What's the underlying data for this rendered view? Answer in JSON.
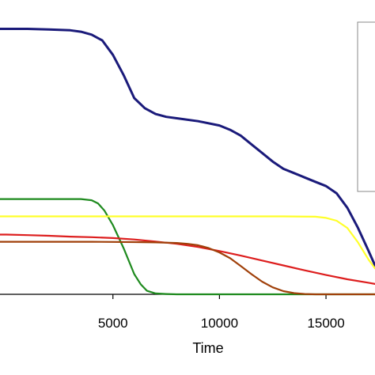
{
  "chart_data": {
    "type": "line",
    "xlabel": "Time",
    "ylabel": "",
    "title": "",
    "xlim": [
      -300,
      17300
    ],
    "ylim": [
      0,
      1.02
    ],
    "x_ticks": [
      "5000",
      "10000",
      "15000"
    ],
    "x_tick_values": [
      5000,
      10000,
      15000
    ],
    "grid": false,
    "legend": "right",
    "colors": {
      "blue": "#1a1a7a",
      "green": "#1e8a1e",
      "yellow": "#ffff2a",
      "red": "#dd1e1e",
      "brown": "#a0400a",
      "axis": "#000000",
      "legend_border": "#888888"
    },
    "series": [
      {
        "color": "#1a1a7a",
        "width": 3,
        "x": [
          -300,
          0,
          1000,
          2000,
          3000,
          3500,
          4000,
          4500,
          5000,
          5500,
          6000,
          6500,
          7000,
          7500,
          8000,
          9000,
          10000,
          10500,
          11000,
          11500,
          12000,
          12500,
          13000,
          13500,
          14000,
          14500,
          15000,
          15500,
          16000,
          16500,
          17000,
          17300
        ],
        "y": [
          0.92,
          0.92,
          0.92,
          0.918,
          0.915,
          0.91,
          0.9,
          0.88,
          0.83,
          0.76,
          0.68,
          0.645,
          0.625,
          0.615,
          0.61,
          0.6,
          0.585,
          0.57,
          0.55,
          0.52,
          0.49,
          0.46,
          0.435,
          0.42,
          0.405,
          0.39,
          0.375,
          0.35,
          0.3,
          0.23,
          0.15,
          0.1
        ]
      },
      {
        "color": "#1e8a1e",
        "width": 2.2,
        "x": [
          -300,
          0,
          1000,
          2000,
          3000,
          3500,
          4000,
          4300,
          4600,
          5000,
          5500,
          6000,
          6300,
          6600,
          7000,
          7500,
          8000,
          10000,
          15000,
          17300
        ],
        "y": [
          0.33,
          0.33,
          0.33,
          0.33,
          0.33,
          0.33,
          0.326,
          0.315,
          0.29,
          0.24,
          0.16,
          0.07,
          0.035,
          0.012,
          0.003,
          0.001,
          0,
          0,
          0,
          0
        ]
      },
      {
        "color": "#ffff2a",
        "width": 2.2,
        "x": [
          -300,
          0,
          5000,
          10000,
          13000,
          14500,
          15000,
          15500,
          16000,
          16500,
          17000,
          17300
        ],
        "y": [
          0.27,
          0.27,
          0.27,
          0.27,
          0.27,
          0.269,
          0.265,
          0.255,
          0.23,
          0.18,
          0.12,
          0.09
        ]
      },
      {
        "color": "#dd1e1e",
        "width": 2.2,
        "x": [
          -300,
          0,
          1000,
          2000,
          3000,
          4000,
          5000,
          6000,
          7000,
          8000,
          9000,
          10000,
          11000,
          12000,
          13000,
          14000,
          15000,
          16000,
          17000,
          17300
        ],
        "y": [
          0.207,
          0.207,
          0.205,
          0.203,
          0.2,
          0.198,
          0.195,
          0.19,
          0.183,
          0.175,
          0.164,
          0.15,
          0.134,
          0.117,
          0.1,
          0.083,
          0.067,
          0.052,
          0.04,
          0.036
        ]
      },
      {
        "color": "#a0400a",
        "width": 2.2,
        "x": [
          -300,
          0,
          2000,
          4000,
          6000,
          7000,
          8000,
          8500,
          9000,
          9500,
          10000,
          10500,
          11000,
          11500,
          12000,
          12500,
          13000,
          13500,
          14000,
          14500,
          15000,
          17300
        ],
        "y": [
          0.182,
          0.182,
          0.182,
          0.182,
          0.181,
          0.18,
          0.178,
          0.175,
          0.17,
          0.16,
          0.145,
          0.125,
          0.098,
          0.07,
          0.044,
          0.024,
          0.011,
          0.004,
          0.001,
          0,
          0,
          0
        ]
      }
    ]
  }
}
